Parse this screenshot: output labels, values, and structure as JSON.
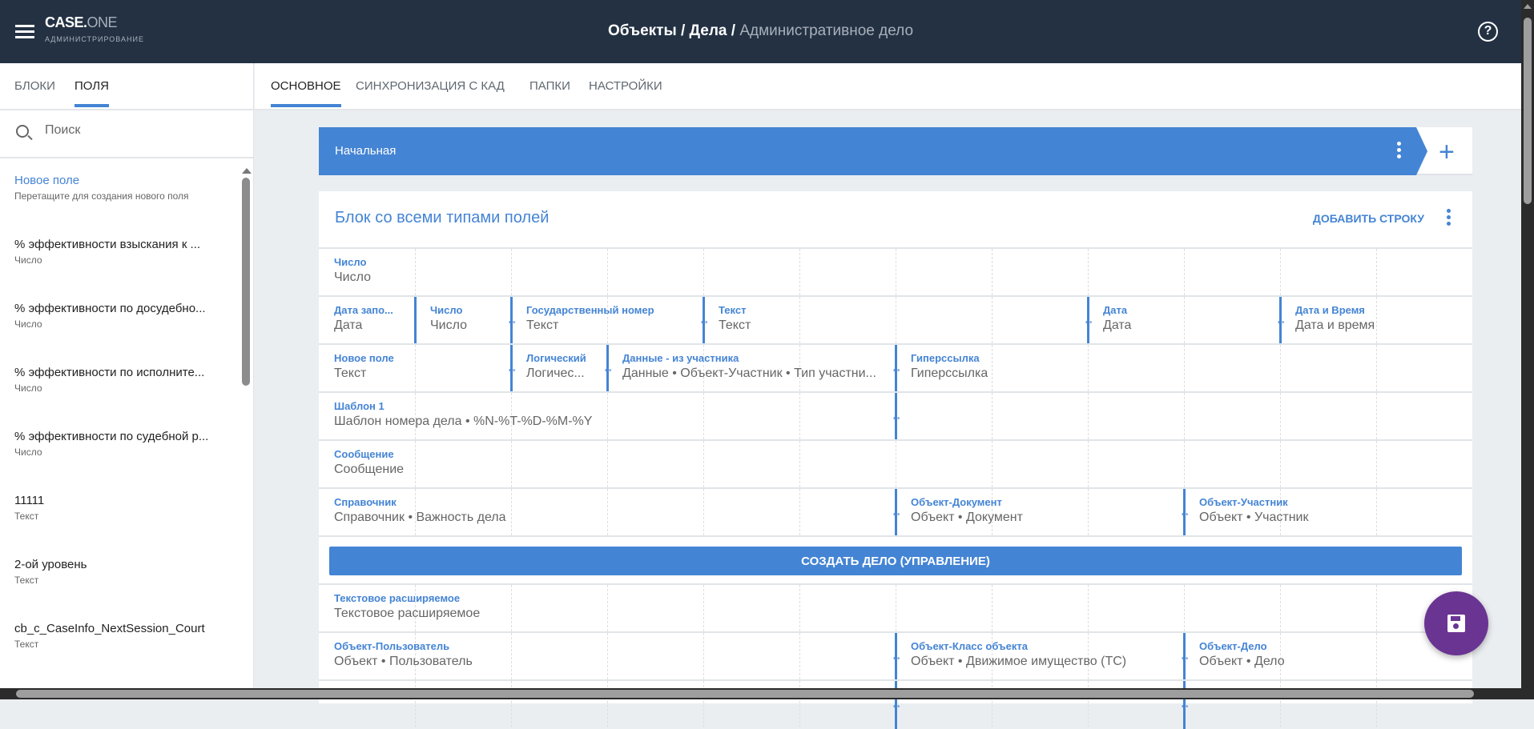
{
  "header": {
    "logo_main": "CASE.",
    "logo_accent": "ONE",
    "logo_sub": "АДМИНИСТРИРОВАНИЕ",
    "breadcrumb": [
      "Объекты",
      "Дела"
    ],
    "breadcrumb_sep": " / ",
    "current": "Административное дело",
    "help_icon": "?"
  },
  "sidebar": {
    "tabs": [
      {
        "label": "БЛОКИ",
        "active": false
      },
      {
        "label": "ПОЛЯ",
        "active": true
      }
    ],
    "search_placeholder": "Поиск",
    "new_field": {
      "title": "Новое поле",
      "subtitle": "Перетащите для создания нового поля"
    },
    "items": [
      {
        "title": "% эффективности взыскания к ...",
        "type": "Число"
      },
      {
        "title": "% эффективности по досудебно...",
        "type": "Число"
      },
      {
        "title": "% эффективности по исполните...",
        "type": "Число"
      },
      {
        "title": "% эффективности по судебной р...",
        "type": "Число"
      },
      {
        "title": "11111",
        "type": "Текст"
      },
      {
        "title": "2-ой уровень",
        "type": "Текст"
      },
      {
        "title": "cb_c_CaseInfo_NextSession_Court",
        "type": "Текст"
      }
    ]
  },
  "main": {
    "tabs": [
      {
        "label": "ОСНОВНОЕ",
        "active": true
      },
      {
        "label": "СИНХРОНИЗАЦИЯ С КАД",
        "active": false
      },
      {
        "label": "ПАПКИ",
        "active": false
      },
      {
        "label": "НАСТРОЙКИ",
        "active": false
      }
    ],
    "stage": {
      "name": "Начальная",
      "add_icon": "+"
    },
    "block": {
      "title": "Блок со всеми типами полей",
      "add_row": "ДОБАВИТЬ СТРОКУ",
      "rows": [
        [
          {
            "label": "Число",
            "value": "Число"
          }
        ],
        [
          {
            "label": "Дата запо...",
            "value": "Дата"
          },
          {
            "label": "Число",
            "value": "Число"
          },
          {
            "label": "Государственный номер",
            "value": "Текст"
          },
          {
            "label": "Текст",
            "value": "Текст"
          },
          {
            "label": "Дата",
            "value": "Дата"
          },
          {
            "label": "Дата и Время",
            "value": "Дата и время"
          }
        ],
        [
          {
            "label": "Новое поле",
            "value": "Текст"
          },
          {
            "label": "Логический",
            "value": "Логичес..."
          },
          {
            "label": "Данные - из участника",
            "value": "Данные • Объект-Участник • Тип участни..."
          },
          {
            "label": "Гиперссылка",
            "value": "Гиперссылка"
          }
        ],
        [
          {
            "label": "Шаблон 1",
            "value": "Шаблон номера дела • %N-%T-%D-%M-%Y"
          },
          {
            "label": "",
            "value": ""
          }
        ],
        [
          {
            "label": "Сообщение",
            "value": "Сообщение"
          }
        ],
        [
          {
            "label": "Справочник",
            "value": "Справочник • Важность дела"
          },
          {
            "label": "Объект-Документ",
            "value": "Объект • Документ"
          },
          {
            "label": "Объект-Участник",
            "value": "Объект • Участник"
          }
        ],
        {
          "button": "СОЗДАТЬ ДЕЛО (УПРАВЛЕНИЕ)"
        },
        [
          {
            "label": "Текстовое расширяемое",
            "value": "Текстовое расширяемое"
          }
        ],
        [
          {
            "label": "Объект-Пользователь",
            "value": "Объект • Пользователь"
          },
          {
            "label": "Объект-Класс объекта",
            "value": "Объект • Движимое имущество (ТС)"
          },
          {
            "label": "Объект-Дело",
            "value": "Объект • Дело"
          }
        ],
        [
          {
            "label": "",
            "value": ""
          },
          {
            "label": "",
            "value": ""
          },
          {
            "label": "",
            "value": ""
          }
        ]
      ]
    }
  },
  "fab": {
    "icon": "save-icon"
  },
  "colors": {
    "header": "#233143",
    "accent": "#4484d4",
    "fab": "#6a3493",
    "background": "#ebeef1"
  }
}
